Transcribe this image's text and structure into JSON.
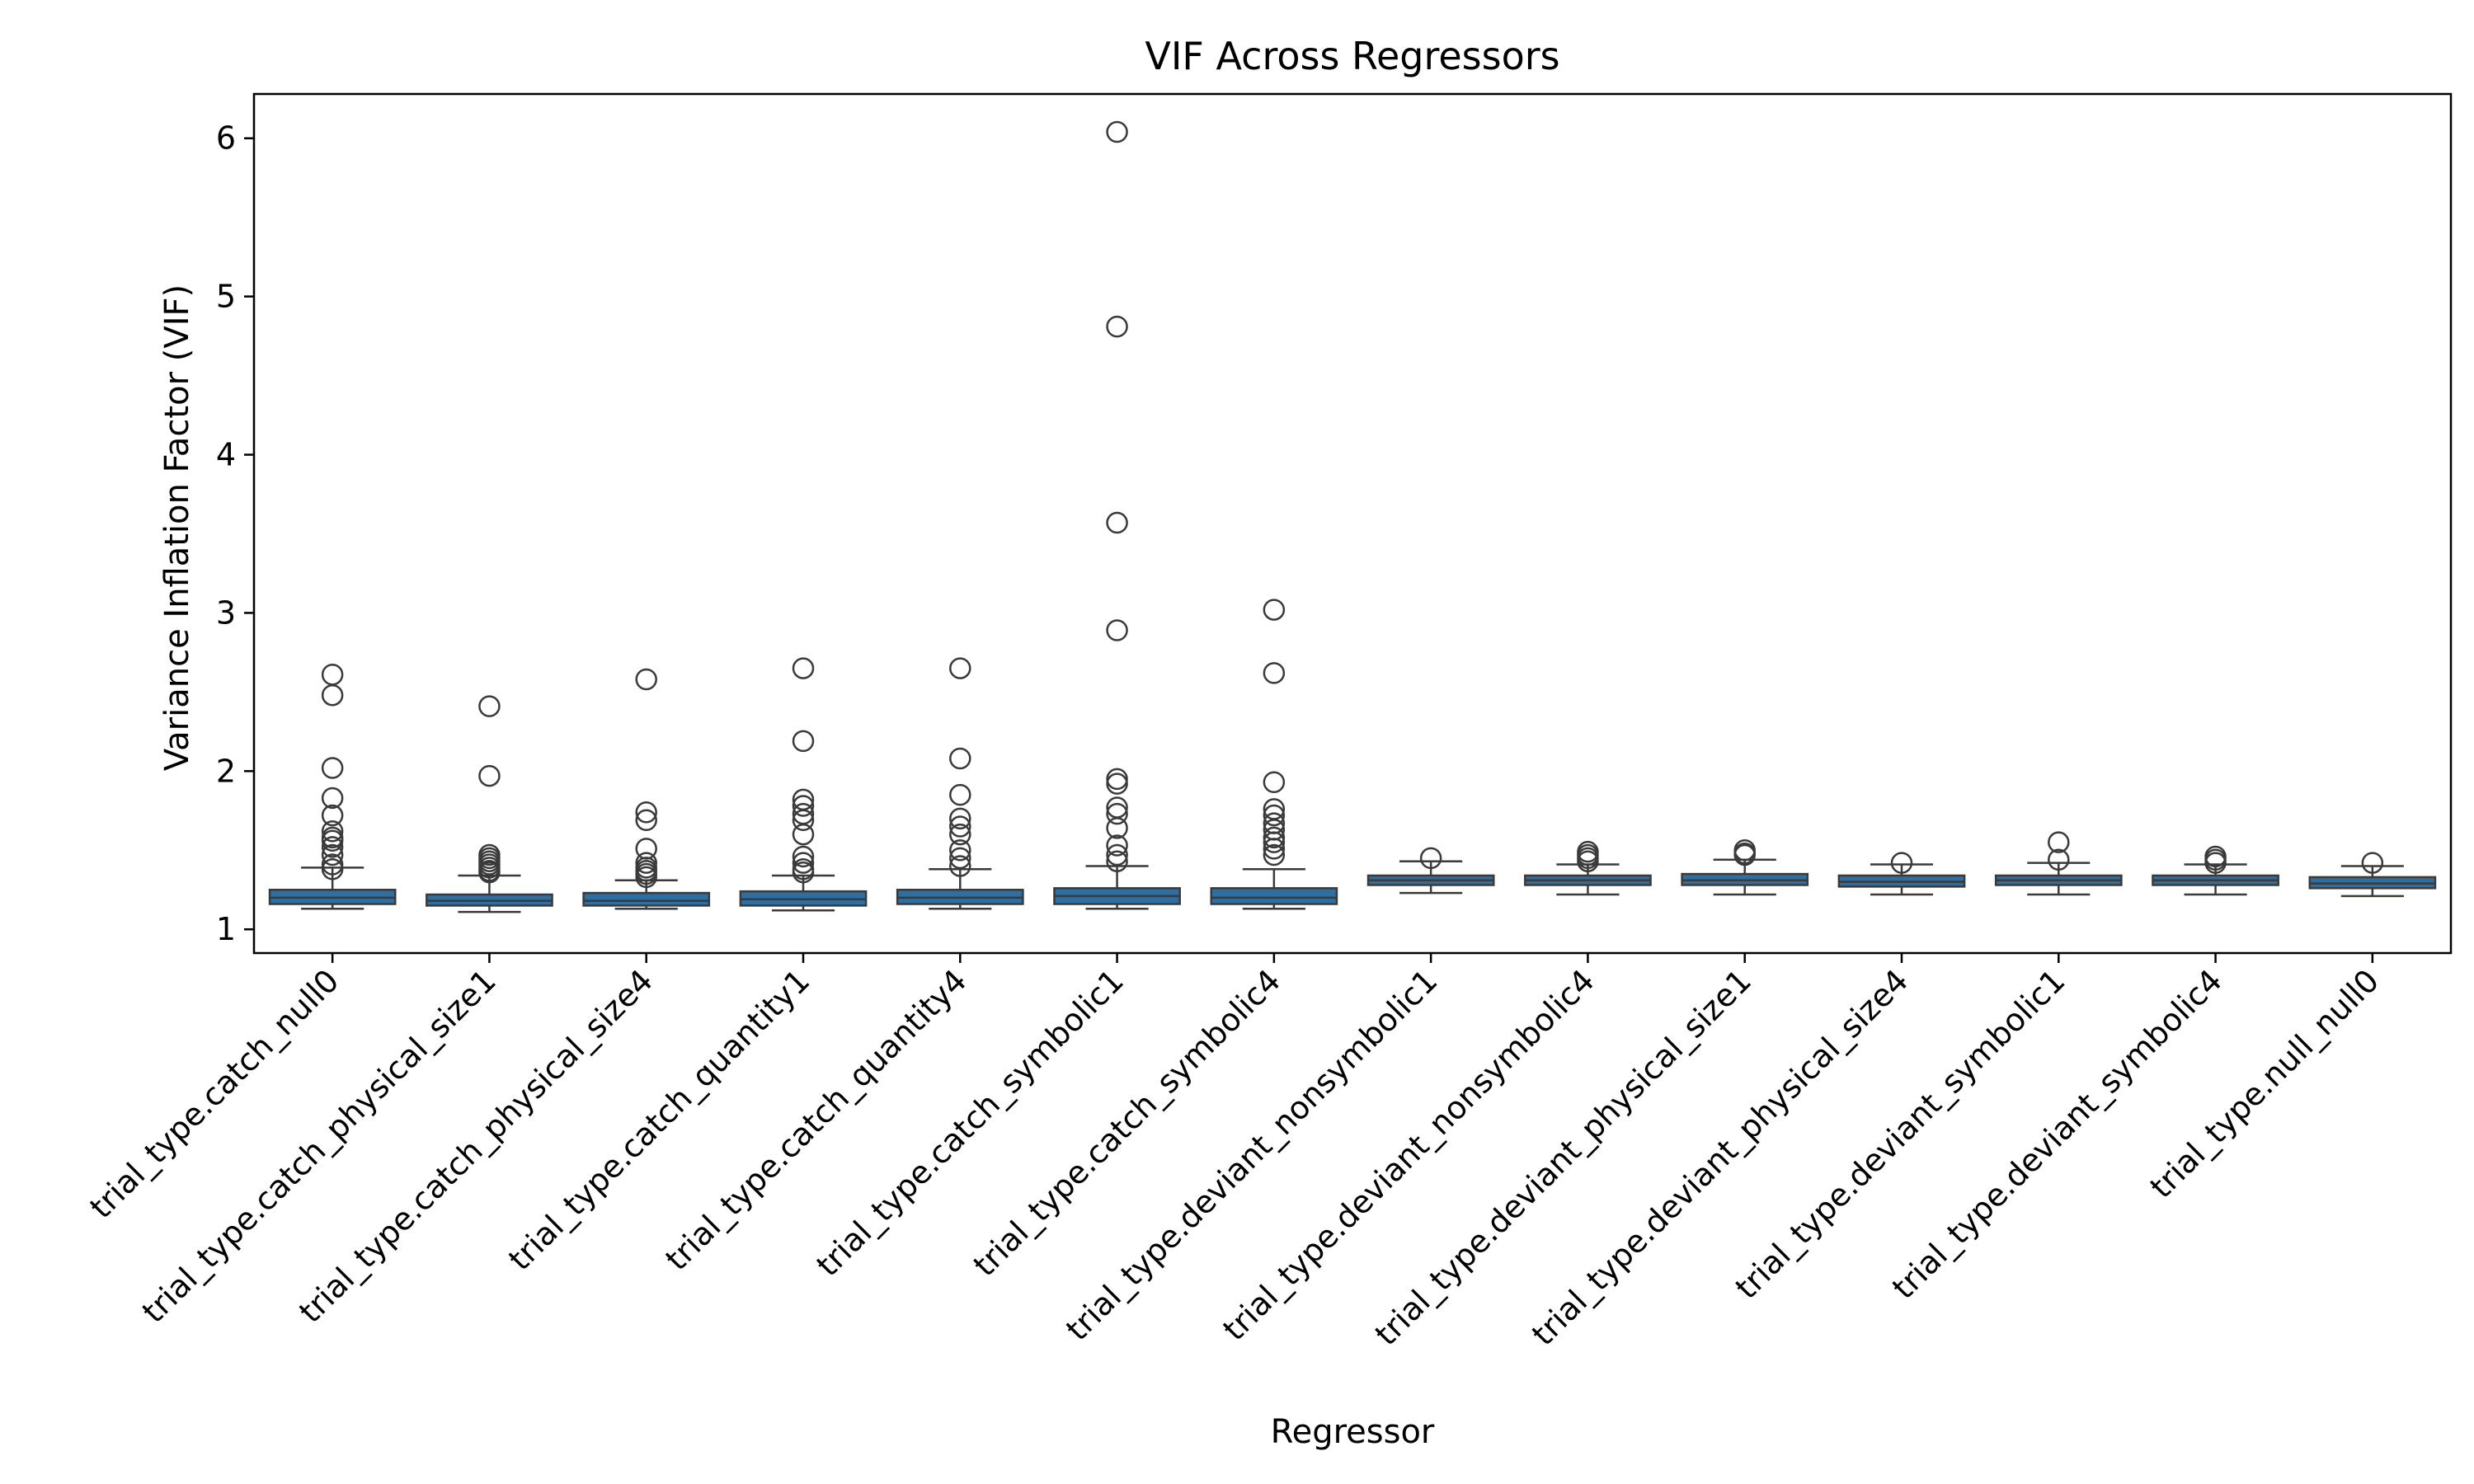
{
  "chart_data": {
    "type": "box",
    "title": "VIF Across Regressors",
    "xlabel": "Regressor",
    "ylabel": "Variance Inflation Factor (VIF)",
    "ylim": [
      0.85,
      6.28
    ],
    "yticks": [
      1,
      2,
      3,
      4,
      5,
      6
    ],
    "grid": false,
    "box_color": "#2e6ea1",
    "edge_color": "#3a3a3a",
    "categories": [
      "trial_type.catch_null0",
      "trial_type.catch_physical_size1",
      "trial_type.catch_physical_size4",
      "trial_type.catch_quantity1",
      "trial_type.catch_quantity4",
      "trial_type.catch_symbolic1",
      "trial_type.catch_symbolic4",
      "trial_type.deviant_nonsymbolic1",
      "trial_type.deviant_nonsymbolic4",
      "trial_type.deviant_physical_size1",
      "trial_type.deviant_physical_size4",
      "trial_type.deviant_symbolic1",
      "trial_type.deviant_symbolic4",
      "trial_type.null_null0"
    ],
    "boxes": [
      {
        "whislo": 1.13,
        "q1": 1.16,
        "med": 1.2,
        "q3": 1.25,
        "whishi": 1.39,
        "fliers": [
          2.61,
          2.48,
          2.02,
          1.83,
          1.72,
          1.62,
          1.58,
          1.56,
          1.52,
          1.47,
          1.41,
          1.38
        ]
      },
      {
        "whislo": 1.11,
        "q1": 1.15,
        "med": 1.18,
        "q3": 1.22,
        "whishi": 1.34,
        "fliers": [
          2.41,
          1.97,
          1.47,
          1.45,
          1.43,
          1.41,
          1.39,
          1.37,
          1.36
        ]
      },
      {
        "whislo": 1.13,
        "q1": 1.15,
        "med": 1.18,
        "q3": 1.23,
        "whishi": 1.31,
        "fliers": [
          2.58,
          1.74,
          1.69,
          1.51,
          1.42,
          1.39,
          1.37,
          1.35,
          1.33
        ]
      },
      {
        "whislo": 1.12,
        "q1": 1.15,
        "med": 1.19,
        "q3": 1.24,
        "whishi": 1.34,
        "fliers": [
          2.65,
          2.19,
          1.82,
          1.78,
          1.73,
          1.69,
          1.6,
          1.46,
          1.42,
          1.38,
          1.36
        ]
      },
      {
        "whislo": 1.13,
        "q1": 1.16,
        "med": 1.2,
        "q3": 1.25,
        "whishi": 1.38,
        "fliers": [
          2.65,
          2.08,
          1.85,
          1.7,
          1.65,
          1.6,
          1.5,
          1.45,
          1.4
        ]
      },
      {
        "whislo": 1.13,
        "q1": 1.16,
        "med": 1.21,
        "q3": 1.26,
        "whishi": 1.4,
        "fliers": [
          6.04,
          4.81,
          3.57,
          2.89,
          1.95,
          1.92,
          1.77,
          1.73,
          1.64,
          1.53,
          1.47,
          1.43
        ]
      },
      {
        "whislo": 1.13,
        "q1": 1.16,
        "med": 1.2,
        "q3": 1.26,
        "whishi": 1.38,
        "fliers": [
          3.02,
          2.62,
          1.93,
          1.76,
          1.72,
          1.67,
          1.63,
          1.58,
          1.55,
          1.51,
          1.47
        ]
      },
      {
        "whislo": 1.23,
        "q1": 1.28,
        "med": 1.31,
        "q3": 1.34,
        "whishi": 1.43,
        "fliers": [
          1.45
        ]
      },
      {
        "whislo": 1.22,
        "q1": 1.28,
        "med": 1.31,
        "q3": 1.34,
        "whishi": 1.41,
        "fliers": [
          1.49,
          1.47,
          1.45,
          1.43
        ]
      },
      {
        "whislo": 1.22,
        "q1": 1.28,
        "med": 1.31,
        "q3": 1.35,
        "whishi": 1.44,
        "fliers": [
          1.5,
          1.48,
          1.47
        ]
      },
      {
        "whislo": 1.22,
        "q1": 1.27,
        "med": 1.3,
        "q3": 1.34,
        "whishi": 1.41,
        "fliers": [
          1.42
        ]
      },
      {
        "whislo": 1.22,
        "q1": 1.28,
        "med": 1.31,
        "q3": 1.34,
        "whishi": 1.42,
        "fliers": [
          1.55,
          1.44
        ]
      },
      {
        "whislo": 1.22,
        "q1": 1.28,
        "med": 1.31,
        "q3": 1.34,
        "whishi": 1.41,
        "fliers": [
          1.46,
          1.44,
          1.42
        ]
      },
      {
        "whislo": 1.21,
        "q1": 1.26,
        "med": 1.29,
        "q3": 1.33,
        "whishi": 1.4,
        "fliers": [
          1.42
        ]
      }
    ]
  }
}
